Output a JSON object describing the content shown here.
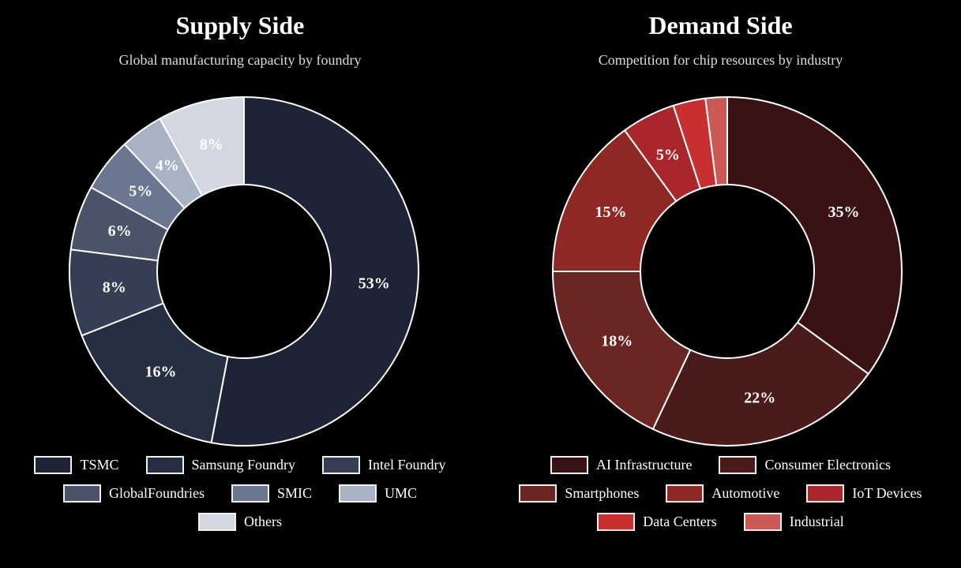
{
  "chart_data": [
    {
      "type": "donut",
      "title": "Supply Side",
      "subtitle": "Global manufacturing capacity by foundry",
      "start_angle_deg": 0,
      "direction": "clockwise",
      "outer_radius": 221,
      "inner_radius": 110,
      "stroke_color": "#ffffff",
      "slices": [
        {
          "name": "TSMC",
          "value": 53,
          "label": "53%",
          "color": "#1e2436"
        },
        {
          "name": "Samsung Foundry",
          "value": 16,
          "label": "16%",
          "color": "#262e41"
        },
        {
          "name": "Intel Foundry",
          "value": 8,
          "label": "8%",
          "color": "#353e55"
        },
        {
          "name": "GlobalFoundries",
          "value": 6,
          "label": "6%",
          "color": "#4b5369"
        },
        {
          "name": "SMIC",
          "value": 5,
          "label": "5%",
          "color": "#6b7691"
        },
        {
          "name": "UMC",
          "value": 4,
          "label": "4%",
          "color": "#a9b1c4"
        },
        {
          "name": "Others",
          "value": 8,
          "label": "8%",
          "color": "#d3d7e2"
        }
      ]
    },
    {
      "type": "donut",
      "title": "Demand Side",
      "subtitle": "Competition for chip resources by industry",
      "start_angle_deg": 0,
      "direction": "clockwise",
      "outer_radius": 221,
      "inner_radius": 110,
      "stroke_color": "#ffffff",
      "slices": [
        {
          "name": "AI Infrastructure",
          "value": 35,
          "label": "35%",
          "color": "#3a1213"
        },
        {
          "name": "Consumer Electronics",
          "value": 22,
          "label": "22%",
          "color": "#4b1a1a"
        },
        {
          "name": "Smartphones",
          "value": 18,
          "label": "18%",
          "color": "#6b2523"
        },
        {
          "name": "Automotive",
          "value": 15,
          "label": "15%",
          "color": "#8f2824"
        },
        {
          "name": "IoT Devices",
          "value": 5,
          "label": "5%",
          "color": "#a9272b"
        },
        {
          "name": "Data Centers",
          "value": 3,
          "label": "",
          "color": "#c8302f"
        },
        {
          "name": "Industrial",
          "value": 2,
          "label": "",
          "color": "#cd5956"
        }
      ]
    }
  ],
  "colors": {
    "background": "#000000",
    "title_text": "#ffffff",
    "subtitle_text": "#dddde2",
    "slice_border": "#ffffff",
    "legend_text": "#ffffff",
    "legend_swatch_border": "#f0f0f0"
  }
}
